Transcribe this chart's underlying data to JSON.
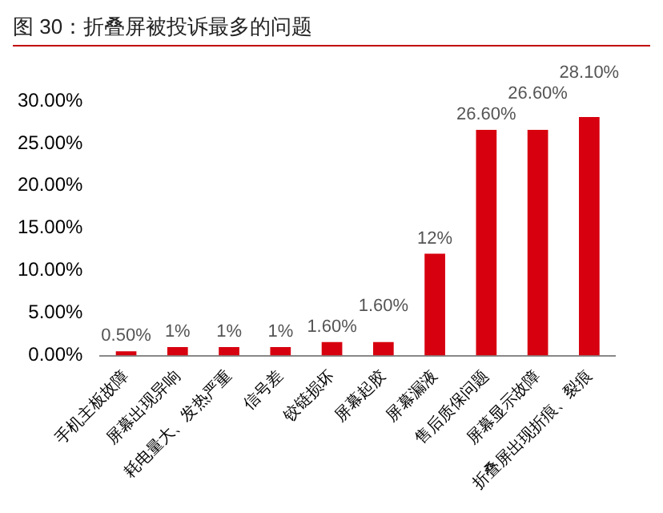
{
  "chart_data": {
    "type": "bar",
    "title": "图 30：折叠屏被投诉最多的问题",
    "categories": [
      "手机主板故障",
      "屏幕出现异响",
      "耗电量大、发热严重",
      "信号差",
      "铰链损坏",
      "屏幕起胶",
      "屏幕漏液",
      "售后质保问题",
      "屏幕显示故障",
      "折叠屏出现折痕、裂痕"
    ],
    "values": [
      0.5,
      1,
      1,
      1,
      1.6,
      1.6,
      12,
      26.6,
      26.6,
      28.1
    ],
    "value_labels": [
      "0.50%",
      "1%",
      "1%",
      "1%",
      "1.60%",
      "1.60%",
      "12%",
      "26.60%",
      "26.60%",
      "28.10%"
    ],
    "color": "#d7000f",
    "ylim": [
      0,
      30
    ],
    "yticks": [
      {
        "value": 0,
        "label": "0.00%"
      },
      {
        "value": 5,
        "label": "5.00%"
      },
      {
        "value": 10,
        "label": "10.00%"
      },
      {
        "value": 15,
        "label": "15.00%"
      },
      {
        "value": 20,
        "label": "20.00%"
      },
      {
        "value": 25,
        "label": "25.00%"
      },
      {
        "value": 30,
        "label": "30.00%"
      }
    ],
    "grid": false,
    "legend": false
  }
}
